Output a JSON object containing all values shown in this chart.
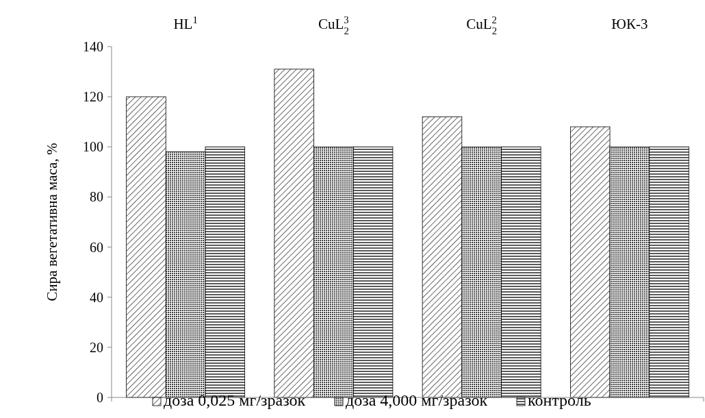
{
  "chart_data": {
    "type": "bar",
    "ylabel": "Сира вегетативна маса, %",
    "categories": [
      "HL$^{1}$",
      "CuL$_{2}$$^{3}$",
      "CuL$_{2}$$^{2}$",
      "ЮК-3"
    ],
    "series": [
      {
        "name": "доза 0,025 мг/зразок",
        "color": "#000000",
        "values": [
          120,
          131,
          112,
          108
        ]
      },
      {
        "name": "доза 4,000 мг/зразок",
        "color": "#000000",
        "values": [
          98,
          100,
          100,
          100
        ]
      },
      {
        "name": "контроль",
        "color": "#000000",
        "values": [
          100,
          100,
          100,
          100
        ]
      }
    ],
    "ylim": [
      0,
      140
    ],
    "yticks": [
      0,
      20,
      40,
      60,
      80,
      100,
      120,
      140
    ],
    "grid": false,
    "legend": "bottom"
  }
}
